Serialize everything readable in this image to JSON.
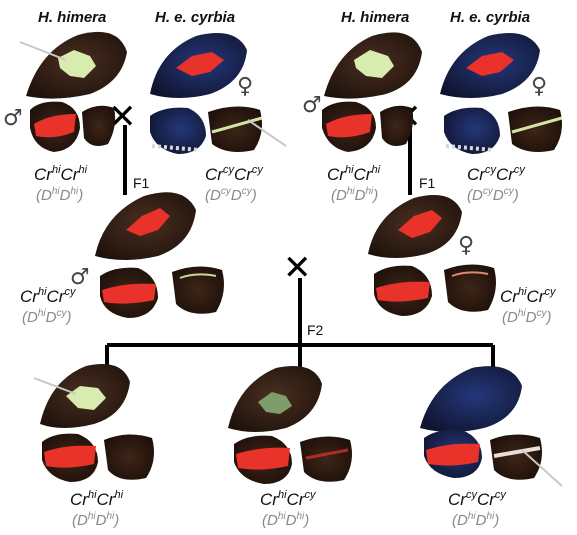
{
  "headers": {
    "left_himera": "H. himera",
    "left_cyrbia": "H. e. cyrbia",
    "right_himera": "H. himera",
    "right_cyrbia": "H. e. cyrbia"
  },
  "symbols": {
    "male": "♂",
    "female": "♀",
    "cross": "✕"
  },
  "generations": {
    "f1_left": "F1",
    "f1_right": "F1",
    "f2": "F2"
  },
  "genotypes": {
    "parent_left_male": {
      "a": "Cr",
      "a_sup": "hi",
      "b": "Cr",
      "b_sup": "hi",
      "d1": "D",
      "d1_sup": "hi",
      "d2": "D",
      "d2_sup": "hi"
    },
    "parent_left_female": {
      "a": "Cr",
      "a_sup": "cy",
      "b": "Cr",
      "b_sup": "cy",
      "d1": "D",
      "d1_sup": "cy",
      "d2": "D",
      "d2_sup": "cy"
    },
    "parent_right_male": {
      "a": "Cr",
      "a_sup": "hi",
      "b": "Cr",
      "b_sup": "hi",
      "d1": "D",
      "d1_sup": "hi",
      "d2": "D",
      "d2_sup": "hi"
    },
    "parent_right_female": {
      "a": "Cr",
      "a_sup": "cy",
      "b": "Cr",
      "b_sup": "cy",
      "d1": "D",
      "d1_sup": "cy",
      "d2": "D",
      "d2_sup": "cy"
    },
    "f1_male": {
      "a": "Cr",
      "a_sup": "hi",
      "b": "Cr",
      "b_sup": "cy",
      "d1": "D",
      "d1_sup": "hi",
      "d2": "D",
      "d2_sup": "cy"
    },
    "f1_female": {
      "a": "Cr",
      "a_sup": "hi",
      "b": "Cr",
      "b_sup": "cy",
      "d1": "D",
      "d1_sup": "hi",
      "d2": "D",
      "d2_sup": "cy"
    },
    "f2_left": {
      "a": "Cr",
      "a_sup": "hi",
      "b": "Cr",
      "b_sup": "hi",
      "d1": "D",
      "d1_sup": "hi",
      "d2": "D",
      "d2_sup": "hi"
    },
    "f2_mid": {
      "a": "Cr",
      "a_sup": "hi",
      "b": "Cr",
      "b_sup": "cy",
      "d1": "D",
      "d1_sup": "hi",
      "d2": "D",
      "d2_sup": "hi"
    },
    "f2_right": {
      "a": "Cr",
      "a_sup": "cy",
      "b": "Cr",
      "b_sup": "cy",
      "d1": "D",
      "d1_sup": "hi",
      "d2": "D",
      "d2_sup": "hi"
    }
  },
  "colors": {
    "wing_dark": "#2b1a14",
    "wing_brown": "#3a2419",
    "wing_blue": "#1c2a5e",
    "band_red": "#e8322a",
    "band_yellow": "#d9ecb0",
    "line": "#000000"
  }
}
